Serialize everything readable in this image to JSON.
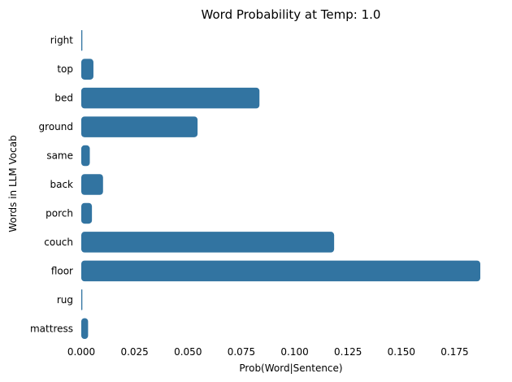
{
  "chart_data": {
    "type": "bar",
    "orientation": "horizontal",
    "title": "Word Probability at Temp: 1.0",
    "xlabel": "Prob(Word|Sentence)",
    "ylabel": "Words in LLM Vocab",
    "categories": [
      "right",
      "top",
      "bed",
      "ground",
      "same",
      "back",
      "porch",
      "couch",
      "floor",
      "rug",
      "mattress"
    ],
    "values": [
      0.0005,
      0.0057,
      0.0835,
      0.0545,
      0.004,
      0.0102,
      0.005,
      0.1185,
      0.187,
      0.0005,
      0.0032
    ],
    "xlim": [
      0,
      0.187
    ],
    "xticks": [
      "0.000",
      "0.025",
      "0.050",
      "0.075",
      "0.100",
      "0.125",
      "0.150",
      "0.175"
    ],
    "xtick_values": [
      0,
      0.025,
      0.05,
      0.075,
      0.1,
      0.125,
      0.15,
      0.175
    ],
    "grid": false,
    "bar_color": "#3274a1"
  }
}
